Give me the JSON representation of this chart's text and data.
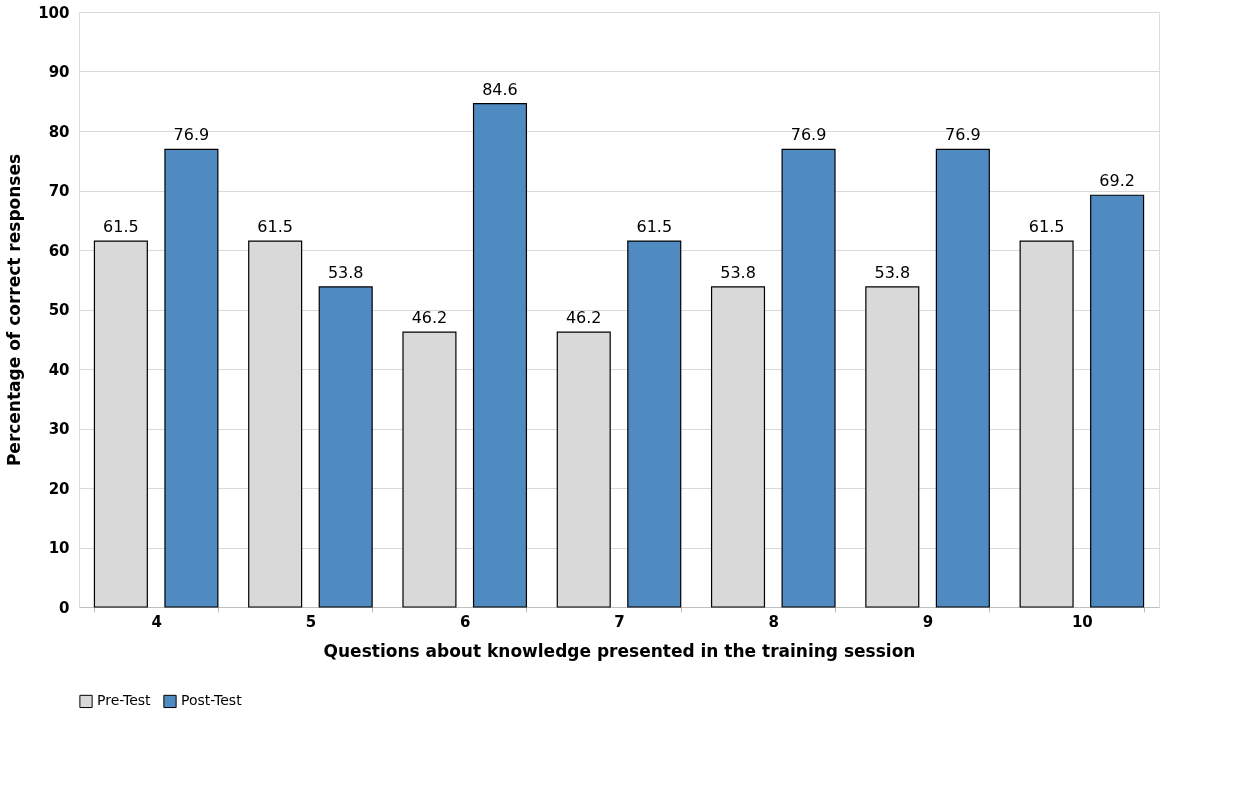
{
  "chart_data": {
    "type": "bar",
    "xlabel": "Questions about knowledge presented in the training session",
    "ylabel": "Percentage of correct responses",
    "categories": [
      "4",
      "5",
      "6",
      "7",
      "8",
      "9",
      "10"
    ],
    "series": [
      {
        "name": "Pre-Test",
        "color": "#d9d9d9",
        "values": [
          61.5,
          61.5,
          46.2,
          46.2,
          53.8,
          53.8,
          61.5
        ]
      },
      {
        "name": "Post-Test",
        "color": "#4f8bc0",
        "values": [
          76.9,
          53.8,
          84.6,
          61.5,
          76.9,
          76.9,
          69.2
        ]
      }
    ],
    "ylim": [
      0,
      100
    ],
    "yticks": [
      0,
      10,
      20,
      30,
      40,
      50,
      60,
      70,
      80,
      90,
      100
    ],
    "grid": "y",
    "legend": "bottom",
    "data_labels": true
  }
}
